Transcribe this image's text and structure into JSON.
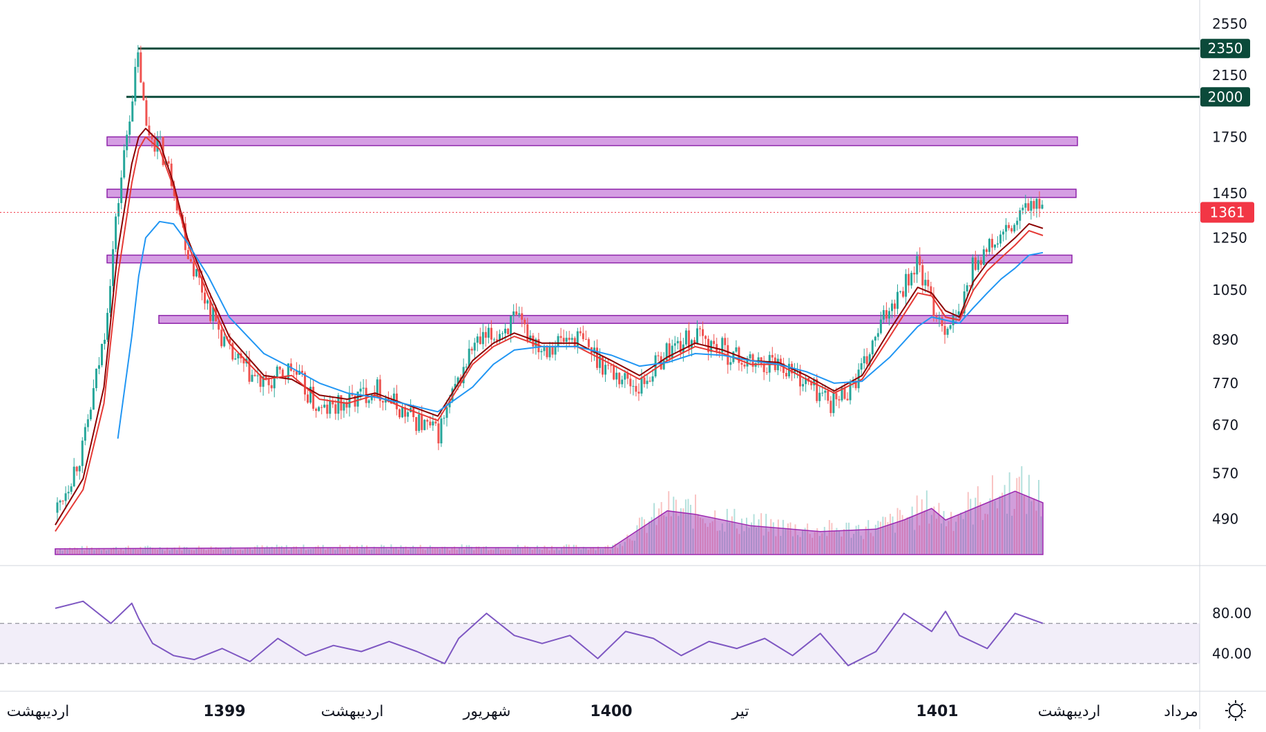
{
  "chart_data": {
    "type": "line",
    "title": "",
    "price_axis": {
      "scale": "log",
      "range": [
        430,
        2650
      ],
      "ticks": [
        490,
        570,
        670,
        770,
        890,
        1050,
        1250,
        1450,
        1750,
        2150,
        2550
      ]
    },
    "last_price": {
      "value": 1361,
      "label": "1361",
      "color": "#f23645"
    },
    "horizontal_levels": [
      {
        "value": 2350,
        "label": "2350",
        "color": "#0b4a3a"
      },
      {
        "value": 2000,
        "label": "2000",
        "color": "#0b4a3a"
      }
    ],
    "zones": [
      {
        "low": 1700,
        "high": 1750,
        "color": "#c77ed9"
      },
      {
        "low": 1430,
        "high": 1470,
        "color": "#c77ed9"
      },
      {
        "low": 1150,
        "high": 1180,
        "color": "#c77ed9"
      },
      {
        "low": 940,
        "high": 965,
        "color": "#c77ed9"
      }
    ],
    "time_labels": [
      "اردیبهشت",
      "1399",
      "اردیبهشت",
      "شهریور",
      "1400",
      "تیر",
      "1401",
      "اردیبهشت",
      "مرداد"
    ],
    "price_series_approx": {
      "x_index": [
        0,
        4,
        7,
        9,
        11,
        12,
        13,
        15,
        17,
        19,
        22,
        25,
        30,
        34,
        38,
        42,
        46,
        50,
        55,
        60,
        63,
        66,
        70,
        75,
        80,
        84,
        88,
        92,
        96,
        100,
        104,
        108,
        112,
        116,
        120,
        124,
        126,
        128,
        130,
        132,
        134,
        136,
        138,
        140,
        142
      ],
      "close": [
        500,
        620,
        900,
        1400,
        2000,
        2300,
        1800,
        1700,
        1500,
        1200,
        1000,
        850,
        760,
        810,
        700,
        720,
        760,
        700,
        650,
        870,
        900,
        950,
        870,
        900,
        800,
        760,
        860,
        900,
        860,
        820,
        830,
        770,
        720,
        800,
        1000,
        1150,
        1000,
        930,
        960,
        1150,
        1200,
        1250,
        1300,
        1400,
        1361
      ]
    },
    "moving_averages": [
      {
        "color": "#8b0000",
        "values": [
          480,
          560,
          760,
          1200,
          1600,
          1750,
          1800,
          1720,
          1500,
          1250,
          1050,
          900,
          790,
          780,
          740,
          730,
          745,
          720,
          690,
          830,
          880,
          910,
          880,
          880,
          830,
          790,
          840,
          880,
          860,
          830,
          825,
          790,
          750,
          790,
          920,
          1060,
          1040,
          980,
          960,
          1080,
          1150,
          1200,
          1250,
          1310,
          1290
        ]
      },
      {
        "color": "#e53935",
        "values": [
          470,
          540,
          720,
          1100,
          1500,
          1680,
          1750,
          1680,
          1480,
          1230,
          1030,
          880,
          780,
          790,
          730,
          720,
          740,
          710,
          680,
          820,
          870,
          900,
          870,
          870,
          820,
          780,
          830,
          870,
          850,
          820,
          820,
          780,
          745,
          780,
          900,
          1040,
          1030,
          960,
          950,
          1050,
          1120,
          1170,
          1220,
          1280,
          1260
        ]
      },
      {
        "color": "#2196f3",
        "values": [
          null,
          null,
          null,
          640,
          900,
          1100,
          1250,
          1320,
          1310,
          1230,
          1100,
          960,
          850,
          810,
          770,
          745,
          735,
          720,
          700,
          760,
          820,
          860,
          870,
          870,
          845,
          815,
          825,
          850,
          845,
          830,
          820,
          800,
          770,
          775,
          840,
          930,
          960,
          950,
          940,
          990,
          1040,
          1090,
          1130,
          1180,
          1190
        ]
      }
    ],
    "volume_profile_approx": {
      "x_index": [
        0,
        40,
        80,
        88,
        92,
        100,
        110,
        118,
        122,
        126,
        128,
        130,
        134,
        138,
        142
      ],
      "values": [
        5,
        6,
        6,
        38,
        35,
        25,
        20,
        22,
        30,
        40,
        30,
        35,
        45,
        55,
        45
      ]
    },
    "rsi": {
      "range": [
        10,
        120
      ],
      "ticks": [
        80,
        40
      ],
      "overbought": 70,
      "oversold": 30,
      "color": "#7e57c2",
      "x_index": [
        0,
        4,
        8,
        11,
        12,
        14,
        17,
        20,
        24,
        28,
        32,
        36,
        40,
        44,
        48,
        52,
        56,
        58,
        62,
        66,
        70,
        74,
        78,
        82,
        86,
        90,
        94,
        98,
        102,
        106,
        110,
        114,
        118,
        122,
        126,
        128,
        130,
        134,
        138,
        142
      ],
      "values": [
        85,
        92,
        70,
        90,
        75,
        50,
        38,
        34,
        45,
        32,
        55,
        38,
        48,
        42,
        52,
        42,
        30,
        55,
        80,
        58,
        50,
        58,
        35,
        62,
        55,
        38,
        52,
        45,
        55,
        38,
        60,
        28,
        42,
        80,
        62,
        82,
        58,
        45,
        80,
        70
      ]
    }
  }
}
